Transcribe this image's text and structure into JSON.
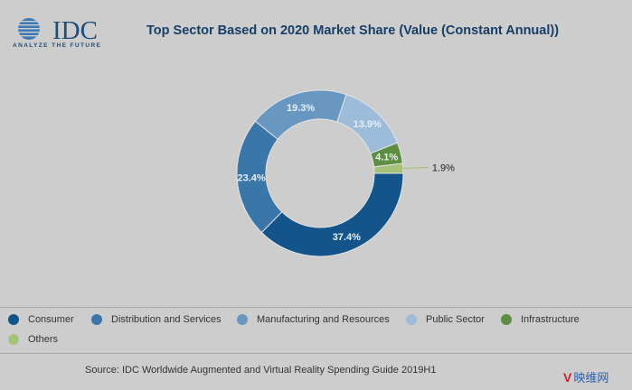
{
  "logo": {
    "text": "IDC",
    "tagline": "ANALYZE THE FUTURE"
  },
  "watermark": {
    "icon": "V",
    "text": "映维网"
  },
  "source": "Source: IDC Worldwide Augmented and Virtual Reality Spending Guide 2019H1",
  "chart_data": {
    "type": "pie",
    "subtype": "donut",
    "title": "Top Sector Based on 2020 Market Share (Value (Constant Annual))",
    "categories": [
      "Consumer",
      "Distribution and Services",
      "Manufacturing and Resources",
      "Public Sector",
      "Infrastructure",
      "Others"
    ],
    "values": [
      37.4,
      23.4,
      19.3,
      13.9,
      4.1,
      1.9
    ],
    "labels": [
      "37.4%",
      "23.4%",
      "19.3%",
      "13.9%",
      "4.1%",
      "1.9%"
    ],
    "colors": [
      "#13548a",
      "#3a76a8",
      "#6898c1",
      "#9dbcd9",
      "#5e8e42",
      "#a6c27a"
    ],
    "label_colors": [
      "#e6eef6",
      "#e6eef6",
      "#e6eef6",
      "#e6eef6",
      "#e6eef6",
      "#222222"
    ],
    "legend_position": "bottom"
  }
}
